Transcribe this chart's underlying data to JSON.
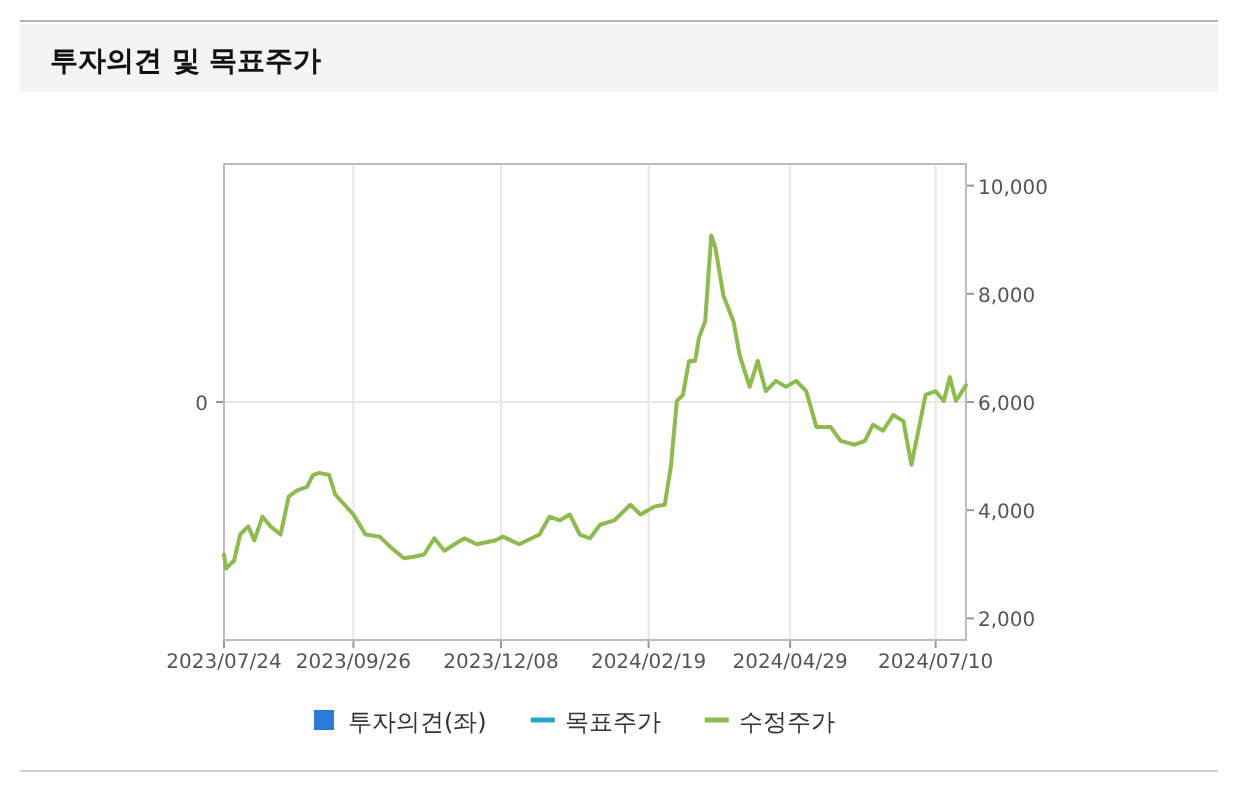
{
  "chart_data": {
    "type": "line",
    "title": "투자의견 및 목표주가",
    "xlim": [
      "2023-07-24",
      "2024-07-25"
    ],
    "xticks": [
      {
        "value": "2023-07-24",
        "label": "2023/07/24"
      },
      {
        "value": "2023-09-26",
        "label": "2023/09/26"
      },
      {
        "value": "2023-12-08",
        "label": "2023/12/08"
      },
      {
        "value": "2024-02-19",
        "label": "2024/02/19"
      },
      {
        "value": "2024-04-29",
        "label": "2024/04/29"
      },
      {
        "value": "2024-07-10",
        "label": "2024/07/10"
      }
    ],
    "annotations": [
      "0"
    ],
    "y2lim": [
      1600,
      10400
    ],
    "y2ticks": [
      {
        "value": 2000,
        "label": "2,000"
      },
      {
        "value": 4000,
        "label": "4,000"
      },
      {
        "value": 6000,
        "label": "6,000"
      },
      {
        "value": 8000,
        "label": "8,000"
      },
      {
        "value": 10000,
        "label": "10,000"
      }
    ],
    "grid": true,
    "legend": "bottom",
    "series": [
      {
        "name": "투자의견(좌)",
        "type": "bar",
        "color": "#2b7bdc"
      },
      {
        "name": "목표주가",
        "type": "line",
        "axis": "y2",
        "color": "#22a9c8"
      },
      {
        "name": "수정주가",
        "axis": "y2",
        "color": "#8dbb4f",
        "x": [
          "2023-07-24",
          "2023-07-25",
          "2023-07-29",
          "2023-08-01",
          "2023-08-05",
          "2023-08-08",
          "2023-08-12",
          "2023-08-16",
          "2023-08-21",
          "2023-08-25",
          "2023-08-29",
          "2023-09-03",
          "2023-09-06",
          "2023-09-09",
          "2023-09-14",
          "2023-09-17",
          "2023-09-26",
          "2023-10-02",
          "2023-10-09",
          "2023-10-14",
          "2023-10-21",
          "2023-10-26",
          "2023-10-31",
          "2023-11-05",
          "2023-11-10",
          "2023-11-15",
          "2023-11-20",
          "2023-11-26",
          "2023-12-05",
          "2023-12-09",
          "2023-12-17",
          "2023-12-27",
          "2024-01-01",
          "2024-01-06",
          "2024-01-11",
          "2024-01-16",
          "2024-01-21",
          "2024-01-26",
          "2024-02-02",
          "2024-02-10",
          "2024-02-15",
          "2024-02-22",
          "2024-02-27",
          "2024-03-01",
          "2024-03-04",
          "2024-03-07",
          "2024-03-10",
          "2024-03-13",
          "2024-03-15",
          "2024-03-18",
          "2024-03-21",
          "2024-03-23",
          "2024-03-27",
          "2024-04-01",
          "2024-04-04",
          "2024-04-09",
          "2024-04-13",
          "2024-04-17",
          "2024-04-22",
          "2024-04-27",
          "2024-05-02",
          "2024-05-07",
          "2024-05-12",
          "2024-05-19",
          "2024-05-24",
          "2024-05-31",
          "2024-06-05",
          "2024-06-09",
          "2024-06-14",
          "2024-06-19",
          "2024-06-24",
          "2024-06-28",
          "2024-07-01",
          "2024-07-05",
          "2024-07-10",
          "2024-07-14",
          "2024-07-17",
          "2024-07-20",
          "2024-07-25"
        ],
        "values": [
          3180,
          2920,
          3070,
          3550,
          3700,
          3440,
          3880,
          3700,
          3550,
          4250,
          4360,
          4430,
          4650,
          4690,
          4650,
          4290,
          3920,
          3550,
          3510,
          3330,
          3110,
          3140,
          3180,
          3480,
          3250,
          3370,
          3480,
          3370,
          3440,
          3510,
          3370,
          3550,
          3880,
          3810,
          3920,
          3550,
          3480,
          3730,
          3810,
          4100,
          3920,
          4070,
          4100,
          4800,
          6020,
          6130,
          6760,
          6760,
          7200,
          7490,
          9080,
          8860,
          7970,
          7490,
          6870,
          6280,
          6760,
          6200,
          6390,
          6280,
          6390,
          6200,
          5540,
          5540,
          5280,
          5210,
          5280,
          5580,
          5470,
          5760,
          5650,
          4840,
          5390,
          6130,
          6200,
          6020,
          6460,
          6020,
          6310
        ]
      }
    ]
  }
}
